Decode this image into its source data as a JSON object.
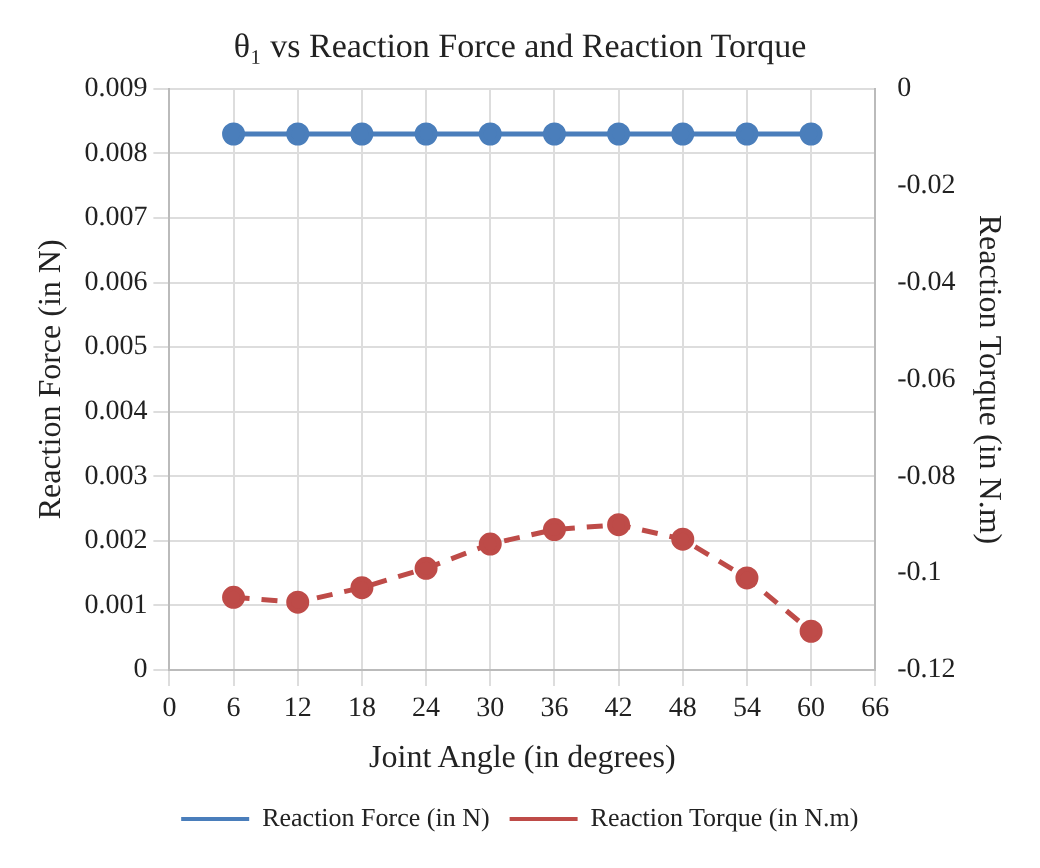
{
  "chart_data": {
    "type": "line",
    "title": "θ₁ vs Reaction Force and Reaction Torque",
    "xlabel": "Joint Angle (in degrees)",
    "ylabel": "Reaction Force (in N)",
    "y2label": "Reaction Torque (in N.m)",
    "x": [
      6,
      12,
      18,
      24,
      30,
      36,
      42,
      48,
      54,
      60
    ],
    "series": [
      {
        "name": "Reaction Force (in N)",
        "color": "#4a7ebb",
        "values": [
          0.0083,
          0.0083,
          0.0083,
          0.0083,
          0.0083,
          0.0083,
          0.0083,
          0.0083,
          0.0083,
          0.0083
        ],
        "line_style": "solid"
      },
      {
        "name": "Reaction Torque (in N.m)",
        "color": "#be4b48",
        "axis": "y2",
        "values": [
          -0.105,
          -0.106,
          -0.103,
          -0.099,
          -0.094,
          -0.091,
          -0.09,
          -0.093,
          -0.101,
          -0.112
        ],
        "line_style": "dashed"
      }
    ],
    "xlim": [
      0,
      66
    ],
    "xticks": [
      0,
      6,
      12,
      18,
      24,
      30,
      36,
      42,
      48,
      54,
      60,
      66
    ],
    "ylim": [
      0,
      0.009
    ],
    "yticks": [
      0,
      0.001,
      0.002,
      0.003,
      0.004,
      0.005,
      0.006,
      0.007,
      0.008,
      0.009
    ],
    "y2lim": [
      -0.12,
      0
    ],
    "y2ticks": [
      -0.12,
      -0.1,
      -0.08,
      -0.06,
      -0.04,
      -0.02,
      0
    ],
    "grid": true,
    "legend": "bottom",
    "marker": "circle"
  }
}
